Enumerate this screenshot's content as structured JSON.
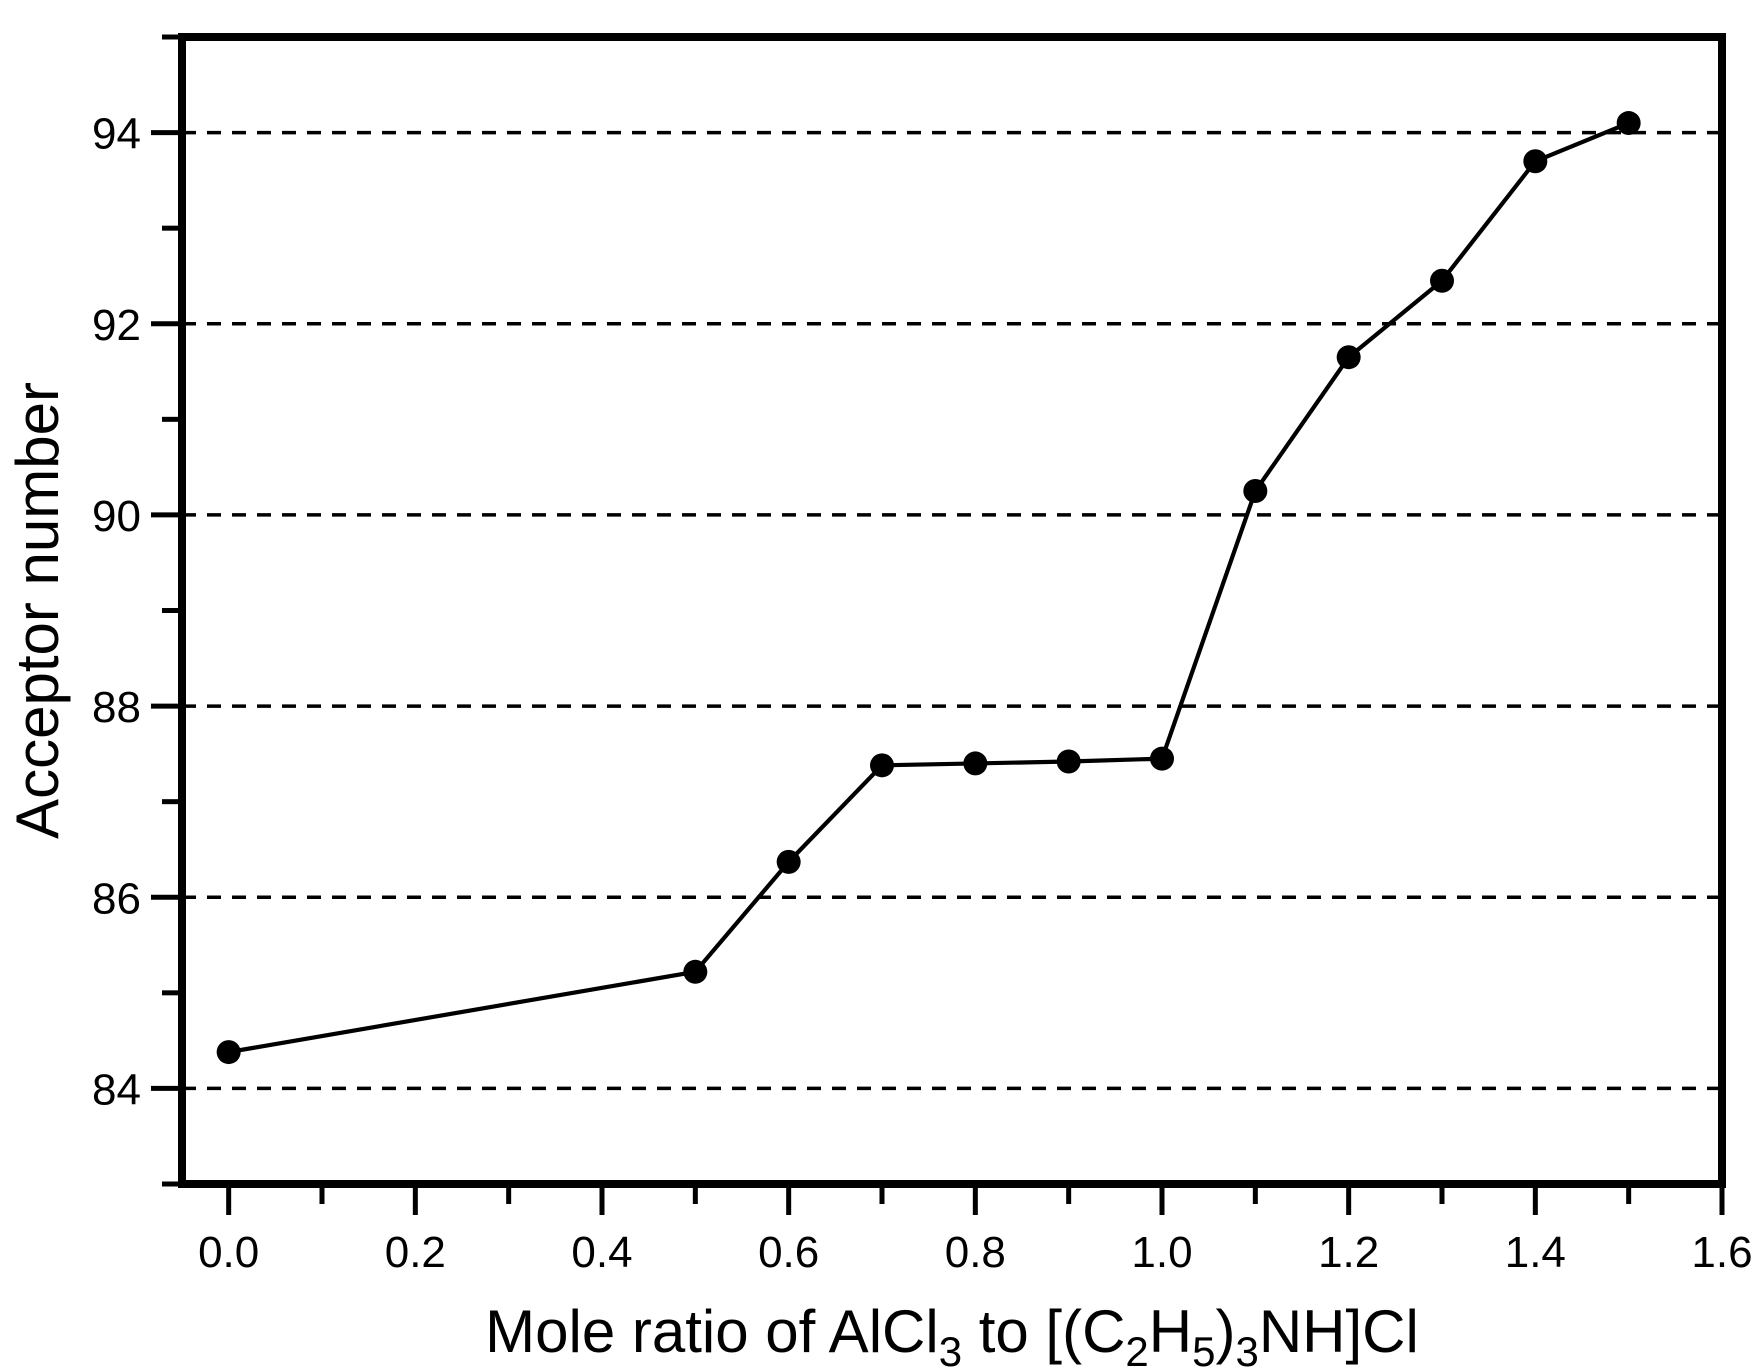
{
  "chart_data": {
    "type": "line",
    "title": "",
    "xlabel": "Mole ratio of AlCl3 to [(C2H5)3NH]Cl",
    "xlabel_segments": [
      {
        "text": "Mole ratio of AlCl",
        "sub": false
      },
      {
        "text": "3",
        "sub": true
      },
      {
        "text": " to [(C",
        "sub": false
      },
      {
        "text": "2",
        "sub": true
      },
      {
        "text": "H",
        "sub": false
      },
      {
        "text": "5",
        "sub": true
      },
      {
        "text": ")",
        "sub": false
      },
      {
        "text": "3",
        "sub": true
      },
      {
        "text": "NH]Cl",
        "sub": false
      }
    ],
    "ylabel": "Acceptor number",
    "xlim": [
      -0.05,
      1.6
    ],
    "ylim": [
      83,
      95
    ],
    "x_major_ticks": [
      0.0,
      0.2,
      0.4,
      0.6,
      0.8,
      1.0,
      1.2,
      1.4,
      1.6
    ],
    "x_major_tick_labels": [
      "0.0",
      "0.2",
      "0.4",
      "0.6",
      "0.8",
      "1.0",
      "1.2",
      "1.4",
      "1.6"
    ],
    "x_minor_ticks": [
      0.1,
      0.3,
      0.5,
      0.7,
      0.9,
      1.1,
      1.3,
      1.5
    ],
    "y_major_ticks": [
      84,
      86,
      88,
      90,
      92,
      94
    ],
    "y_major_tick_labels": [
      "84",
      "86",
      "88",
      "90",
      "92",
      "94"
    ],
    "y_minor_ticks": [
      83,
      85,
      87,
      89,
      91,
      93,
      95
    ],
    "grid": {
      "horizontal": true,
      "vertical": false,
      "style": "dashed"
    },
    "legend": "none",
    "series": [
      {
        "name": "Acceptor number",
        "marker": "filled-circle",
        "x": [
          0.0,
          0.5,
          0.6,
          0.7,
          0.8,
          0.9,
          1.0,
          1.1,
          1.2,
          1.3,
          1.4,
          1.5
        ],
        "y": [
          84.38,
          85.22,
          86.37,
          87.38,
          87.4,
          87.42,
          87.45,
          90.25,
          91.65,
          92.45,
          93.7,
          94.1
        ]
      }
    ],
    "colors": {
      "foreground": "#000000",
      "background": "#ffffff"
    }
  }
}
